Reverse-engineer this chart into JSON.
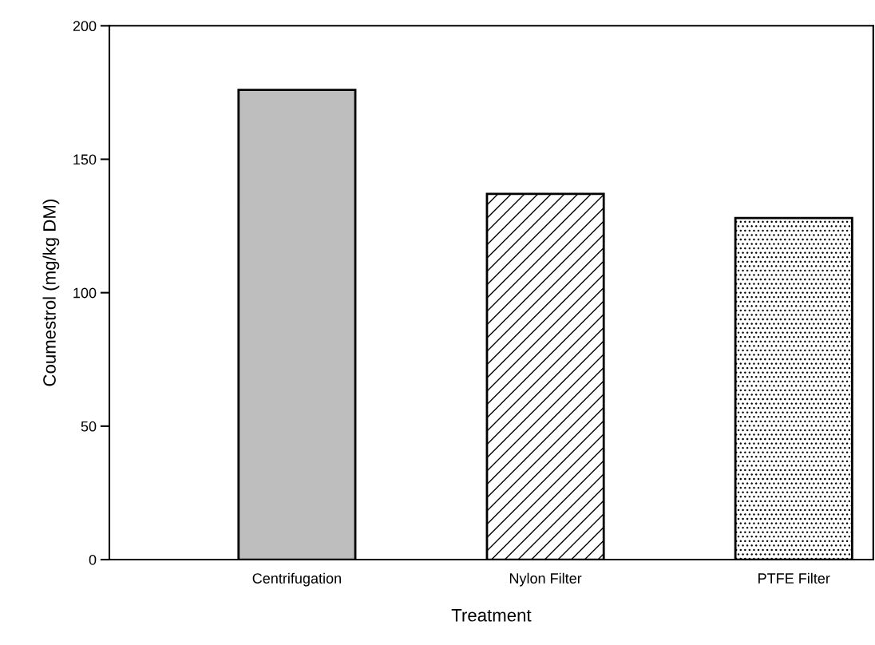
{
  "chart_data": {
    "type": "bar",
    "xlabel": "Treatment",
    "ylabel": "Coumestrol (mg/kg DM)",
    "categories": [
      "Centrifugation",
      "Nylon Filter",
      "PTFE Filter"
    ],
    "values": [
      176,
      137,
      128
    ],
    "colors": [
      "#bebebe",
      "#ffffff",
      "#ffffff"
    ],
    "ylim": [
      0,
      200
    ],
    "yticks": [
      0,
      50,
      100,
      150,
      200
    ],
    "grid": false,
    "legend": false
  }
}
